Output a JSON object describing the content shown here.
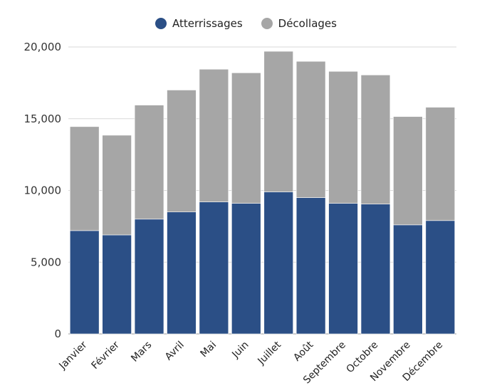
{
  "chart_data": {
    "type": "bar",
    "stacked": true,
    "categories": [
      "Janvier",
      "Février",
      "Mars",
      "Avril",
      "Mai",
      "Juin",
      "Juillet",
      "Août",
      "Septembre",
      "Octobre",
      "Novembre",
      "Décembre"
    ],
    "series": [
      {
        "name": "Atterrissages",
        "color": "#2b4f86",
        "values": [
          7200,
          6900,
          8000,
          8500,
          9200,
          9100,
          9900,
          9500,
          9100,
          9050,
          7600,
          7900
        ]
      },
      {
        "name": "Décollages",
        "color": "#a6a6a6",
        "values": [
          7250,
          6950,
          7950,
          8500,
          9250,
          9100,
          9800,
          9500,
          9200,
          9000,
          7550,
          7900
        ]
      }
    ],
    "ylim": [
      0,
      20000
    ],
    "yticks": [
      "0",
      "5,000",
      "10,000",
      "15,000",
      "20,000"
    ],
    "ytick_values": [
      0,
      5000,
      10000,
      15000,
      20000
    ],
    "grid": true,
    "legend_position": "top-center"
  }
}
